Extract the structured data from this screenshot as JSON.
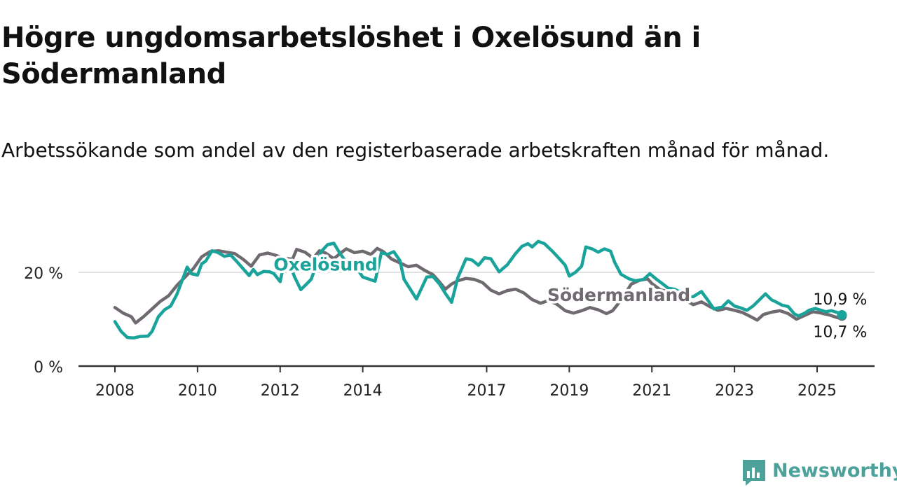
{
  "title": "Högre ungdomsarbetslöshet i Oxelösund än i Södermanland",
  "subtitle": "Arbetssökande som andel av den registerbaserade arbetskraften månad för månad.",
  "brand": {
    "name": "Newsworthy",
    "color": "#4da19b"
  },
  "chart_data": {
    "type": "line",
    "x_unit": "year (decimal)",
    "xlim": [
      2007.7,
      2026.4
    ],
    "ylim": [
      0,
      27
    ],
    "yticks": [
      0,
      20
    ],
    "ytick_labels": [
      "0 %",
      "20 %"
    ],
    "xticks": [
      2008,
      2010,
      2012,
      2014,
      2017,
      2019,
      2021,
      2023,
      2025
    ],
    "xtick_labels": [
      "2008",
      "2010",
      "2012",
      "2014",
      "2017",
      "2019",
      "2021",
      "2023",
      "2025"
    ],
    "grid": "horizontal",
    "series": [
      {
        "name": "Södermanland",
        "color": "#6f6a70",
        "end_label": "10,7 %",
        "label_position": [
          2020.2,
          13.9
        ],
        "points": [
          [
            2008.0,
            12.5
          ],
          [
            2008.2,
            11.3
          ],
          [
            2008.4,
            10.5
          ],
          [
            2008.5,
            9.2
          ],
          [
            2008.7,
            10.6
          ],
          [
            2008.9,
            12.2
          ],
          [
            2009.1,
            13.8
          ],
          [
            2009.3,
            15.0
          ],
          [
            2009.5,
            17.2
          ],
          [
            2009.7,
            19.0
          ],
          [
            2009.9,
            20.8
          ],
          [
            2010.1,
            23.3
          ],
          [
            2010.3,
            24.4
          ],
          [
            2010.5,
            24.6
          ],
          [
            2010.7,
            24.3
          ],
          [
            2010.9,
            24.0
          ],
          [
            2011.1,
            22.8
          ],
          [
            2011.3,
            21.3
          ],
          [
            2011.5,
            23.7
          ],
          [
            2011.7,
            24.1
          ],
          [
            2011.9,
            23.6
          ],
          [
            2012.1,
            23.0
          ],
          [
            2012.3,
            22.8
          ],
          [
            2012.4,
            24.9
          ],
          [
            2012.6,
            24.3
          ],
          [
            2012.8,
            23.0
          ],
          [
            2012.95,
            24.6
          ],
          [
            2013.1,
            24.1
          ],
          [
            2013.3,
            22.9
          ],
          [
            2013.45,
            24.0
          ],
          [
            2013.6,
            25.0
          ],
          [
            2013.8,
            24.2
          ],
          [
            2014.0,
            24.5
          ],
          [
            2014.2,
            23.8
          ],
          [
            2014.35,
            25.1
          ],
          [
            2014.5,
            24.4
          ],
          [
            2014.7,
            22.8
          ],
          [
            2014.9,
            22.0
          ],
          [
            2015.1,
            21.2
          ],
          [
            2015.3,
            21.5
          ],
          [
            2015.5,
            20.4
          ],
          [
            2015.7,
            19.5
          ],
          [
            2015.85,
            18.0
          ],
          [
            2016.0,
            16.4
          ],
          [
            2016.15,
            17.5
          ],
          [
            2016.3,
            18.2
          ],
          [
            2016.5,
            18.7
          ],
          [
            2016.7,
            18.5
          ],
          [
            2016.9,
            17.8
          ],
          [
            2017.1,
            16.2
          ],
          [
            2017.3,
            15.4
          ],
          [
            2017.5,
            16.1
          ],
          [
            2017.7,
            16.4
          ],
          [
            2017.9,
            15.6
          ],
          [
            2018.1,
            14.2
          ],
          [
            2018.3,
            13.4
          ],
          [
            2018.5,
            14.0
          ],
          [
            2018.7,
            13.2
          ],
          [
            2018.9,
            11.8
          ],
          [
            2019.1,
            11.3
          ],
          [
            2019.3,
            11.8
          ],
          [
            2019.5,
            12.5
          ],
          [
            2019.7,
            12.0
          ],
          [
            2019.9,
            11.2
          ],
          [
            2020.05,
            11.8
          ],
          [
            2020.2,
            13.5
          ],
          [
            2020.35,
            15.4
          ],
          [
            2020.5,
            17.5
          ],
          [
            2020.7,
            18.3
          ],
          [
            2020.9,
            18.6
          ],
          [
            2021.0,
            17.6
          ],
          [
            2021.2,
            16.3
          ],
          [
            2021.4,
            15.8
          ],
          [
            2021.6,
            15.0
          ],
          [
            2021.8,
            14.1
          ],
          [
            2022.0,
            13.1
          ],
          [
            2022.2,
            13.7
          ],
          [
            2022.4,
            12.7
          ],
          [
            2022.6,
            11.9
          ],
          [
            2022.8,
            12.3
          ],
          [
            2023.0,
            11.9
          ],
          [
            2023.2,
            11.4
          ],
          [
            2023.4,
            10.5
          ],
          [
            2023.55,
            9.8
          ],
          [
            2023.7,
            11.0
          ],
          [
            2023.9,
            11.5
          ],
          [
            2024.1,
            11.8
          ],
          [
            2024.3,
            11.2
          ],
          [
            2024.5,
            10.0
          ],
          [
            2024.7,
            10.8
          ],
          [
            2024.9,
            11.6
          ],
          [
            2025.1,
            11.3
          ],
          [
            2025.3,
            10.9
          ],
          [
            2025.5,
            10.3
          ],
          [
            2025.6,
            10.7
          ]
        ]
      },
      {
        "name": "Oxelösund",
        "color": "#1aa39a",
        "end_label": "10,9 %",
        "label_position": [
          2013.1,
          20.4
        ],
        "points": [
          [
            2008.0,
            9.5
          ],
          [
            2008.15,
            7.4
          ],
          [
            2008.3,
            6.1
          ],
          [
            2008.45,
            6.0
          ],
          [
            2008.6,
            6.3
          ],
          [
            2008.8,
            6.4
          ],
          [
            2008.9,
            7.4
          ],
          [
            2009.05,
            10.5
          ],
          [
            2009.2,
            12.0
          ],
          [
            2009.35,
            12.8
          ],
          [
            2009.5,
            15.3
          ],
          [
            2009.65,
            18.8
          ],
          [
            2009.75,
            21.1
          ],
          [
            2009.85,
            19.7
          ],
          [
            2010.0,
            19.4
          ],
          [
            2010.1,
            21.8
          ],
          [
            2010.2,
            22.4
          ],
          [
            2010.35,
            24.6
          ],
          [
            2010.5,
            24.2
          ],
          [
            2010.65,
            23.4
          ],
          [
            2010.8,
            23.7
          ],
          [
            2010.95,
            22.3
          ],
          [
            2011.1,
            20.8
          ],
          [
            2011.25,
            19.3
          ],
          [
            2011.35,
            20.6
          ],
          [
            2011.45,
            19.5
          ],
          [
            2011.6,
            20.2
          ],
          [
            2011.75,
            20.1
          ],
          [
            2011.85,
            19.7
          ],
          [
            2012.0,
            18.0
          ],
          [
            2012.1,
            22.3
          ],
          [
            2012.2,
            22.4
          ],
          [
            2012.35,
            19.0
          ],
          [
            2012.5,
            16.3
          ],
          [
            2012.65,
            17.6
          ],
          [
            2012.75,
            18.5
          ],
          [
            2012.9,
            22.1
          ],
          [
            2013.0,
            24.5
          ],
          [
            2013.15,
            25.9
          ],
          [
            2013.3,
            26.2
          ],
          [
            2013.45,
            24.0
          ],
          [
            2013.6,
            22.2
          ],
          [
            2013.75,
            21.7
          ],
          [
            2013.9,
            20.3
          ],
          [
            2014.0,
            19.0
          ],
          [
            2014.1,
            18.7
          ],
          [
            2014.3,
            18.1
          ],
          [
            2014.45,
            24.2
          ],
          [
            2014.6,
            23.8
          ],
          [
            2014.75,
            24.4
          ],
          [
            2014.9,
            22.5
          ],
          [
            2015.0,
            18.5
          ],
          [
            2015.1,
            17.1
          ],
          [
            2015.3,
            14.3
          ],
          [
            2015.45,
            17.1
          ],
          [
            2015.55,
            19.0
          ],
          [
            2015.7,
            19.1
          ],
          [
            2015.85,
            17.6
          ],
          [
            2016.0,
            15.5
          ],
          [
            2016.15,
            13.6
          ],
          [
            2016.3,
            18.8
          ],
          [
            2016.5,
            22.9
          ],
          [
            2016.65,
            22.6
          ],
          [
            2016.8,
            21.5
          ],
          [
            2016.95,
            23.1
          ],
          [
            2017.1,
            22.9
          ],
          [
            2017.3,
            20.1
          ],
          [
            2017.5,
            21.6
          ],
          [
            2017.7,
            24.0
          ],
          [
            2017.85,
            25.5
          ],
          [
            2018.0,
            26.1
          ],
          [
            2018.1,
            25.4
          ],
          [
            2018.25,
            26.6
          ],
          [
            2018.4,
            26.1
          ],
          [
            2018.6,
            24.4
          ],
          [
            2018.75,
            23.0
          ],
          [
            2018.9,
            21.5
          ],
          [
            2019.0,
            19.2
          ],
          [
            2019.15,
            20.0
          ],
          [
            2019.3,
            21.3
          ],
          [
            2019.4,
            25.4
          ],
          [
            2019.55,
            25.0
          ],
          [
            2019.7,
            24.3
          ],
          [
            2019.85,
            25.0
          ],
          [
            2020.0,
            24.5
          ],
          [
            2020.1,
            22.1
          ],
          [
            2020.25,
            19.6
          ],
          [
            2020.45,
            18.6
          ],
          [
            2020.6,
            18.2
          ],
          [
            2020.8,
            18.5
          ],
          [
            2020.95,
            19.7
          ],
          [
            2021.1,
            18.6
          ],
          [
            2021.25,
            17.6
          ],
          [
            2021.4,
            16.6
          ],
          [
            2021.55,
            16.4
          ],
          [
            2021.7,
            15.7
          ],
          [
            2021.85,
            14.7
          ],
          [
            2022.0,
            14.8
          ],
          [
            2022.2,
            15.9
          ],
          [
            2022.35,
            14.1
          ],
          [
            2022.5,
            12.2
          ],
          [
            2022.7,
            12.6
          ],
          [
            2022.85,
            13.9
          ],
          [
            2023.0,
            12.8
          ],
          [
            2023.15,
            12.4
          ],
          [
            2023.3,
            11.9
          ],
          [
            2023.45,
            12.8
          ],
          [
            2023.6,
            14.1
          ],
          [
            2023.75,
            15.4
          ],
          [
            2023.9,
            14.1
          ],
          [
            2024.0,
            13.7
          ],
          [
            2024.15,
            13.0
          ],
          [
            2024.3,
            12.7
          ],
          [
            2024.45,
            11.1
          ],
          [
            2024.55,
            10.7
          ],
          [
            2024.7,
            11.3
          ],
          [
            2024.8,
            11.9
          ],
          [
            2024.95,
            12.3
          ],
          [
            2025.1,
            11.9
          ],
          [
            2025.2,
            11.6
          ],
          [
            2025.35,
            11.8
          ],
          [
            2025.5,
            11.4
          ],
          [
            2025.6,
            10.9
          ]
        ]
      }
    ]
  }
}
